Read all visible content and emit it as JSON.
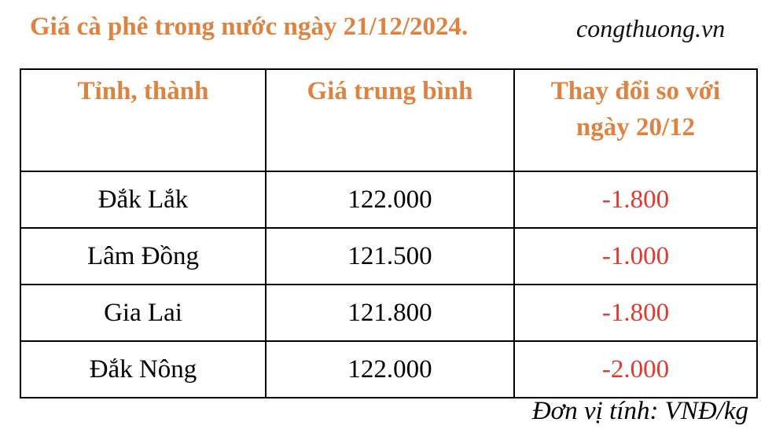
{
  "title": "Giá cà phê trong nước ngày 21/12/2024.",
  "source": "congthuong.vn",
  "table": {
    "headers": [
      "Tỉnh, thành",
      "Giá trung bình",
      "Thay đổi so với ngày 20/12"
    ],
    "rows": [
      {
        "province": "Đắk Lắk",
        "price": "122.000",
        "change": "-1.800"
      },
      {
        "province": "Lâm Đồng",
        "price": "121.500",
        "change": "-1.000"
      },
      {
        "province": "Gia Lai",
        "price": "121.800",
        "change": "-1.800"
      },
      {
        "province": "Đắk Nông",
        "price": "122.000",
        "change": "-2.000"
      }
    ]
  },
  "unit": "Đơn vị tính: VNĐ/kg",
  "colors": {
    "header": "#E0823F",
    "negative_change": "#E03A2E"
  }
}
